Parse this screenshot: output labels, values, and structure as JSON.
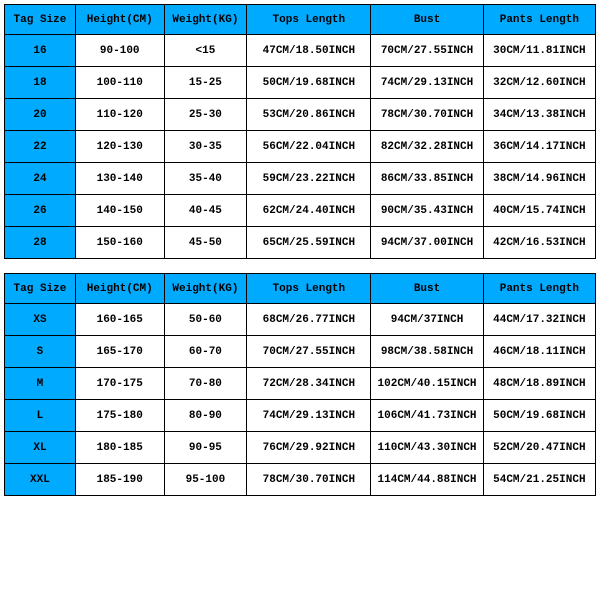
{
  "colors": {
    "header_bg": "#00aaff",
    "cell_bg": "#ffffff",
    "border": "#000000",
    "text": "#000000"
  },
  "typography": {
    "font_family": "Courier New, monospace",
    "font_size_pt": 8,
    "font_weight": "bold"
  },
  "columns": [
    {
      "label": "Tag Size",
      "width_pct": 12,
      "align": "center"
    },
    {
      "label": "Height(CM)",
      "width_pct": 15,
      "align": "center"
    },
    {
      "label": "Weight(KG)",
      "width_pct": 14,
      "align": "center"
    },
    {
      "label": "Tops Length",
      "width_pct": 21,
      "align": "center"
    },
    {
      "label": "Bust",
      "width_pct": 19,
      "align": "center"
    },
    {
      "label": "Pants Length",
      "width_pct": 19,
      "align": "center"
    }
  ],
  "tables": [
    {
      "type": "table",
      "rows": [
        [
          "16",
          "90-100",
          "<15",
          "47CM/18.50INCH",
          "70CM/27.55INCH",
          "30CM/11.81INCH"
        ],
        [
          "18",
          "100-110",
          "15-25",
          "50CM/19.68INCH",
          "74CM/29.13INCH",
          "32CM/12.60INCH"
        ],
        [
          "20",
          "110-120",
          "25-30",
          "53CM/20.86INCH",
          "78CM/30.70INCH",
          "34CM/13.38INCH"
        ],
        [
          "22",
          "120-130",
          "30-35",
          "56CM/22.04INCH",
          "82CM/32.28INCH",
          "36CM/14.17INCH"
        ],
        [
          "24",
          "130-140",
          "35-40",
          "59CM/23.22INCH",
          "86CM/33.85INCH",
          "38CM/14.96INCH"
        ],
        [
          "26",
          "140-150",
          "40-45",
          "62CM/24.40INCH",
          "90CM/35.43INCH",
          "40CM/15.74INCH"
        ],
        [
          "28",
          "150-160",
          "45-50",
          "65CM/25.59INCH",
          "94CM/37.00INCH",
          "42CM/16.53INCH"
        ]
      ]
    },
    {
      "type": "table",
      "rows": [
        [
          "XS",
          "160-165",
          "50-60",
          "68CM/26.77INCH",
          "94CM/37INCH",
          "44CM/17.32INCH"
        ],
        [
          "S",
          "165-170",
          "60-70",
          "70CM/27.55INCH",
          "98CM/38.58INCH",
          "46CM/18.11INCH"
        ],
        [
          "M",
          "170-175",
          "70-80",
          "72CM/28.34INCH",
          "102CM/40.15INCH",
          "48CM/18.89INCH"
        ],
        [
          "L",
          "175-180",
          "80-90",
          "74CM/29.13INCH",
          "106CM/41.73INCH",
          "50CM/19.68INCH"
        ],
        [
          "XL",
          "180-185",
          "90-95",
          "76CM/29.92INCH",
          "110CM/43.30INCH",
          "52CM/20.47INCH"
        ],
        [
          "XXL",
          "185-190",
          "95-100",
          "78CM/30.70INCH",
          "114CM/44.88INCH",
          "54CM/21.25INCH"
        ]
      ]
    }
  ]
}
